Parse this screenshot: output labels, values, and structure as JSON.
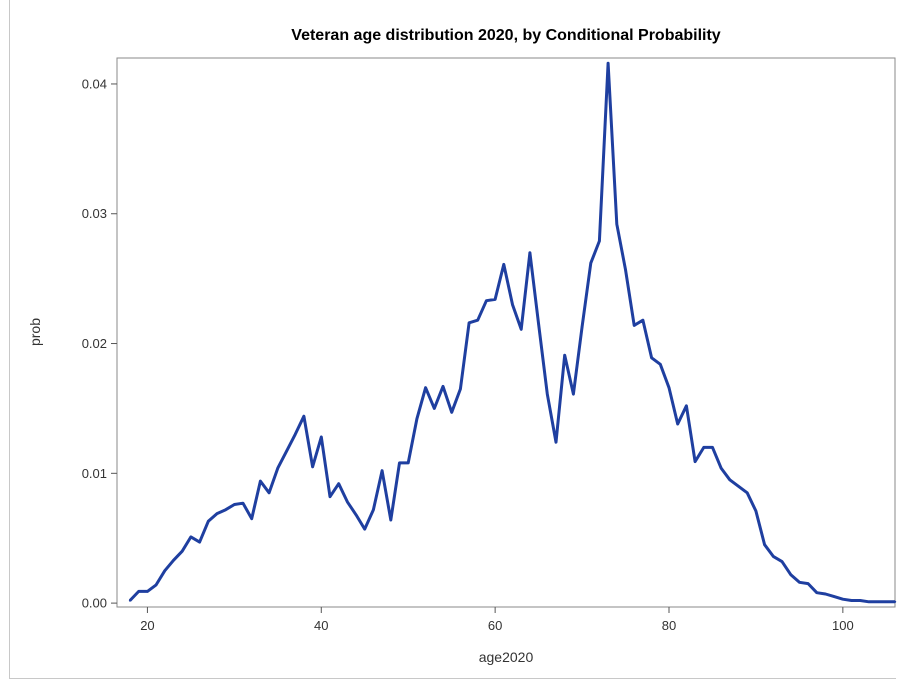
{
  "chart_data": {
    "type": "line",
    "title": "Veteran age distribution 2020, by Conditional Probability",
    "xlabel": "age2020",
    "ylabel": "prob",
    "xlim": [
      16.5,
      106
    ],
    "ylim": [
      -0.0003,
      0.042
    ],
    "x_ticks": [
      20,
      40,
      60,
      80,
      100
    ],
    "x_tick_labels": [
      "20",
      "40",
      "60",
      "80",
      "100"
    ],
    "y_ticks": [
      0,
      0.01,
      0.02,
      0.03,
      0.04
    ],
    "y_tick_labels": [
      "0.00",
      "0.01",
      "0.02",
      "0.03",
      "0.04"
    ],
    "grid": false,
    "line_color": "#1f3fa0",
    "series": [
      {
        "x": [
          18,
          19,
          20,
          21,
          22,
          23,
          24,
          25,
          26,
          27,
          28,
          29,
          30,
          31,
          32,
          33,
          34,
          35,
          36,
          37,
          38,
          39,
          40,
          41,
          42,
          43,
          44,
          45,
          46,
          47,
          48,
          49,
          50,
          51,
          52,
          53,
          54,
          55,
          56,
          57,
          58,
          59,
          60,
          61,
          62,
          63,
          64,
          65,
          66,
          67,
          68,
          69,
          70,
          71,
          72,
          73,
          74,
          75,
          76,
          77,
          78,
          79,
          80,
          81,
          82,
          83,
          84,
          85,
          86,
          87,
          88,
          89,
          90,
          91,
          92,
          93,
          94,
          95,
          96,
          97,
          98,
          99,
          100,
          101,
          102,
          103,
          104,
          105,
          106
        ],
        "values": [
          0.0002,
          0.0009,
          0.0009,
          0.0014,
          0.0025,
          0.0033,
          0.004,
          0.0051,
          0.0047,
          0.0063,
          0.0069,
          0.0072,
          0.0076,
          0.0077,
          0.0065,
          0.0094,
          0.0085,
          0.0104,
          0.0117,
          0.013,
          0.0144,
          0.0105,
          0.0128,
          0.0082,
          0.0092,
          0.0078,
          0.0068,
          0.0057,
          0.0072,
          0.0102,
          0.0064,
          0.0108,
          0.0108,
          0.0142,
          0.0166,
          0.015,
          0.0167,
          0.0147,
          0.0165,
          0.0216,
          0.0218,
          0.0233,
          0.0234,
          0.0261,
          0.023,
          0.0211,
          0.027,
          0.0215,
          0.0161,
          0.0124,
          0.0191,
          0.0161,
          0.0213,
          0.0262,
          0.0279,
          0.0416,
          0.0292,
          0.0257,
          0.0214,
          0.0218,
          0.0189,
          0.0184,
          0.0166,
          0.0138,
          0.0152,
          0.0109,
          0.012,
          0.012,
          0.0104,
          0.0095,
          0.009,
          0.0085,
          0.0071,
          0.0045,
          0.0036,
          0.0032,
          0.0022,
          0.0016,
          0.0015,
          0.0008,
          0.0007,
          0.0005,
          0.0003,
          0.0002,
          0.0002,
          0.0001,
          0.0001,
          0.0001,
          0.0001
        ]
      }
    ]
  }
}
